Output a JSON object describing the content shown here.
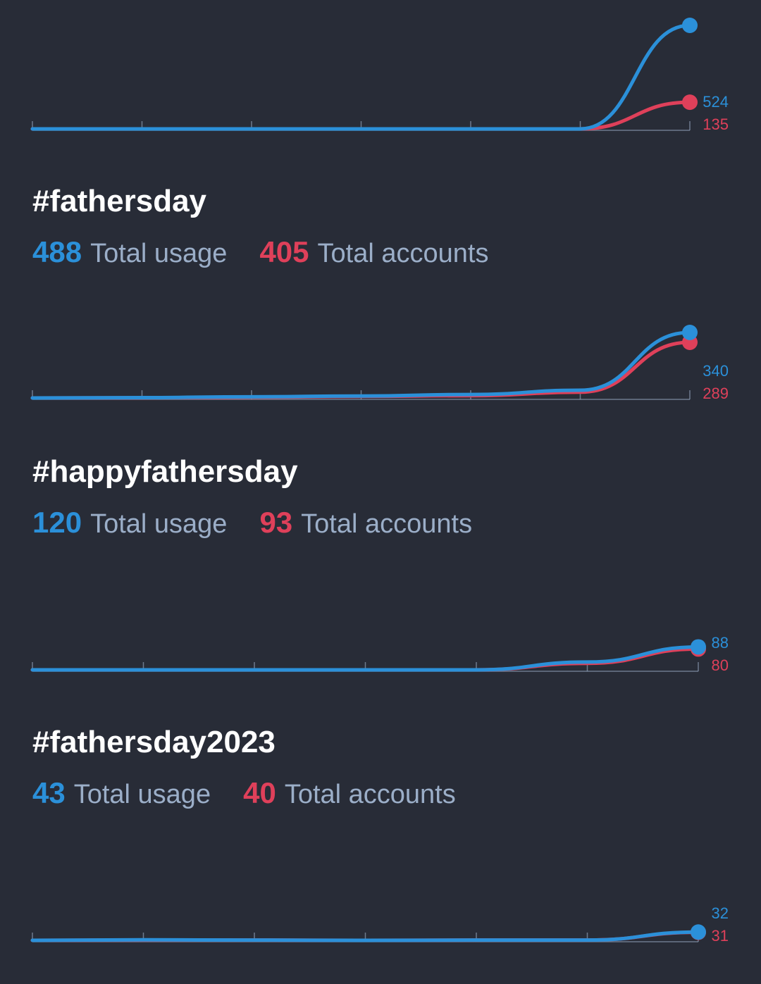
{
  "colors": {
    "background": "#282c37",
    "uses": "#2b90d9",
    "accounts": "#df405a",
    "label": "#9baec8",
    "axis": "#9baec8",
    "title": "#ffffff"
  },
  "labels": {
    "usage": "Total usage",
    "accounts": "Total accounts"
  },
  "tags": [
    {
      "name": "#fathersday",
      "total_usage": "488",
      "total_accounts": "405"
    },
    {
      "name": "#happyfathersday",
      "total_usage": "120",
      "total_accounts": "93"
    },
    {
      "name": "#fathersday2023",
      "total_usage": "43",
      "total_accounts": "40"
    }
  ],
  "chart_data": [
    {
      "type": "line",
      "categories": [
        1,
        2,
        3,
        4,
        5,
        6,
        7
      ],
      "series": [
        {
          "values": [
            0,
            0,
            0,
            0,
            0,
            0,
            524
          ]
        },
        {
          "values": [
            0,
            0,
            0,
            0,
            0,
            0,
            135
          ]
        }
      ],
      "end_labels": [
        "524",
        "135"
      ],
      "ylim": [
        0,
        524
      ]
    },
    {
      "type": "line",
      "categories": [
        1,
        2,
        3,
        4,
        5,
        6,
        7
      ],
      "series": [
        {
          "values": [
            0,
            2,
            6,
            10,
            18,
            40,
            340
          ]
        },
        {
          "values": [
            0,
            1,
            4,
            8,
            12,
            30,
            289
          ]
        }
      ],
      "end_labels": [
        "340",
        "289"
      ],
      "ylim": [
        0,
        340
      ]
    },
    {
      "type": "line",
      "categories": [
        1,
        2,
        3,
        4,
        5,
        6,
        7
      ],
      "series": [
        {
          "values": [
            0,
            0,
            0,
            0,
            0,
            30,
            88
          ]
        },
        {
          "values": [
            0,
            0,
            0,
            0,
            0,
            25,
            80
          ]
        }
      ],
      "end_labels": [
        "88",
        "80"
      ],
      "ylim": [
        0,
        300
      ]
    },
    {
      "type": "line",
      "categories": [
        1,
        2,
        3,
        4,
        5,
        6,
        7
      ],
      "series": [
        {
          "values": [
            0,
            2,
            1,
            0,
            1,
            1,
            32
          ]
        },
        {
          "values": [
            0,
            1,
            1,
            0,
            1,
            1,
            31
          ]
        }
      ],
      "end_labels": [
        "32",
        "31"
      ],
      "ylim": [
        0,
        300
      ]
    }
  ]
}
